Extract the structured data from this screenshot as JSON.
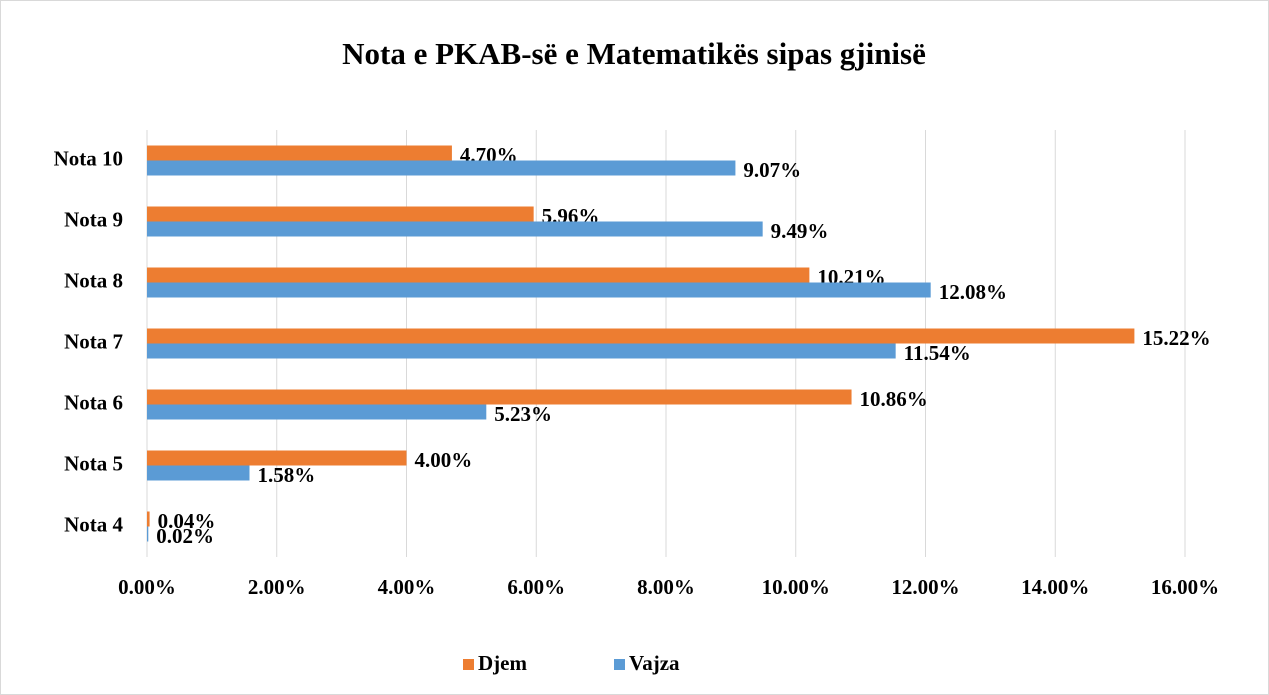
{
  "chart_data": {
    "type": "barh",
    "title": "Nota e PKAB-së e Matematikës sipas gjinisë",
    "categories": [
      "Nota 10",
      "Nota 9",
      "Nota 8",
      "Nota 7",
      "Nota 6",
      "Nota 5",
      "Nota 4"
    ],
    "series": [
      {
        "name": "Djem",
        "color": "#ed7d31",
        "values": [
          4.7,
          5.96,
          10.21,
          15.22,
          10.86,
          4.0,
          0.04
        ],
        "value_labels": [
          "4.70%",
          "5.96%",
          "10.21%",
          "15.22%",
          "10.86%",
          "4.00%",
          "0.04%"
        ]
      },
      {
        "name": "Vajza",
        "color": "#5b9bd5",
        "values": [
          9.07,
          9.49,
          12.08,
          11.54,
          5.23,
          1.58,
          0.02
        ],
        "value_labels": [
          "9.07%",
          "9.49%",
          "12.08%",
          "11.54%",
          "5.23%",
          "1.58%",
          "0.02%"
        ]
      }
    ],
    "xlim": [
      0,
      16
    ],
    "xticks": [
      {
        "value": 0,
        "label": "0.00%"
      },
      {
        "value": 2,
        "label": "2.00%"
      },
      {
        "value": 4,
        "label": "4.00%"
      },
      {
        "value": 6,
        "label": "6.00%"
      },
      {
        "value": 8,
        "label": "8.00%"
      },
      {
        "value": 10,
        "label": "10.00%"
      },
      {
        "value": 12,
        "label": "12.00%"
      },
      {
        "value": 14,
        "label": "14.00%"
      },
      {
        "value": 16,
        "label": "16.00%"
      }
    ],
    "grid": true,
    "legend": "bottom"
  }
}
